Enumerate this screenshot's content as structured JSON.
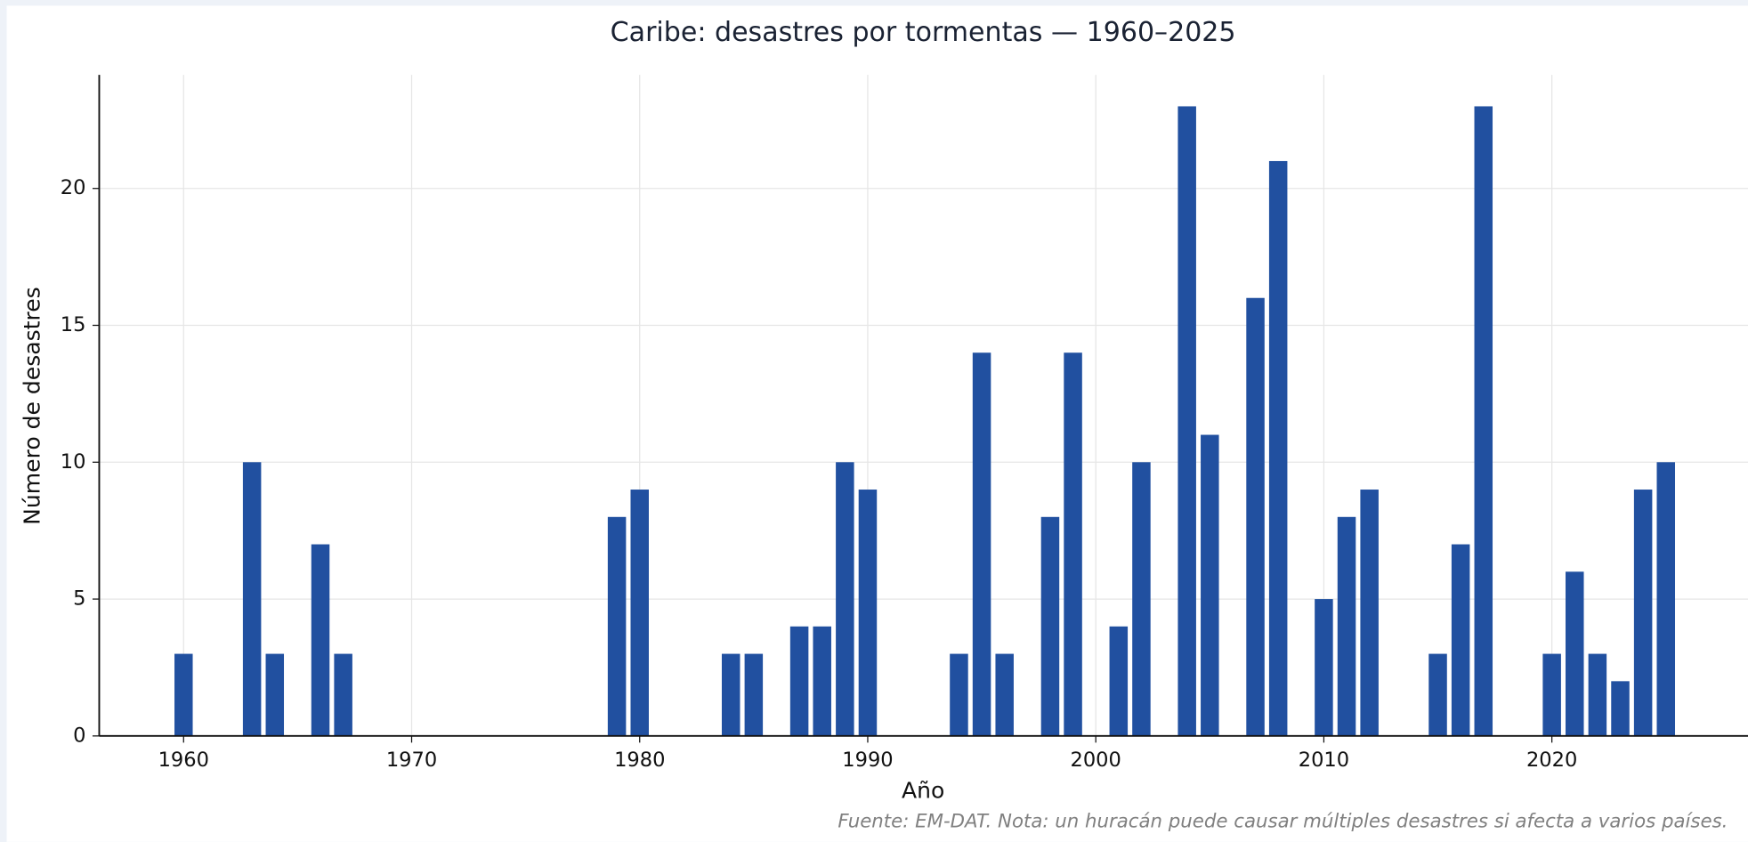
{
  "chart_data": {
    "type": "bar",
    "title": "Caribe: desastres por tormentas — 1960–2025",
    "x_label": "Año",
    "y_label": "Número de desastres",
    "footnote": "Fuente: EM-DAT.  Nota: un huracán puede causar múltiples desastres si afecta a varios países.",
    "x": [
      1960,
      1963,
      1964,
      1966,
      1967,
      1979,
      1980,
      1984,
      1985,
      1987,
      1988,
      1989,
      1990,
      1994,
      1995,
      1996,
      1998,
      1999,
      2001,
      2002,
      2004,
      2005,
      2007,
      2008,
      2010,
      2011,
      2012,
      2015,
      2016,
      2017,
      2020,
      2021,
      2022,
      2023,
      2024,
      2025
    ],
    "values": [
      3,
      10,
      3,
      7,
      3,
      8,
      9,
      3,
      3,
      4,
      4,
      10,
      9,
      3,
      14,
      3,
      8,
      14,
      4,
      10,
      23,
      11,
      16,
      21,
      5,
      8,
      9,
      3,
      7,
      23,
      3,
      6,
      3,
      2,
      9,
      10
    ],
    "color": "#2150a0",
    "xlim": [
      1956.3,
      2028.6
    ],
    "xticks": [
      1960,
      1970,
      1980,
      1990,
      2000,
      2010,
      2020
    ],
    "ylim": [
      0,
      24.15
    ],
    "yticks": [
      0,
      5,
      10,
      15,
      20
    ],
    "grid": true
  }
}
